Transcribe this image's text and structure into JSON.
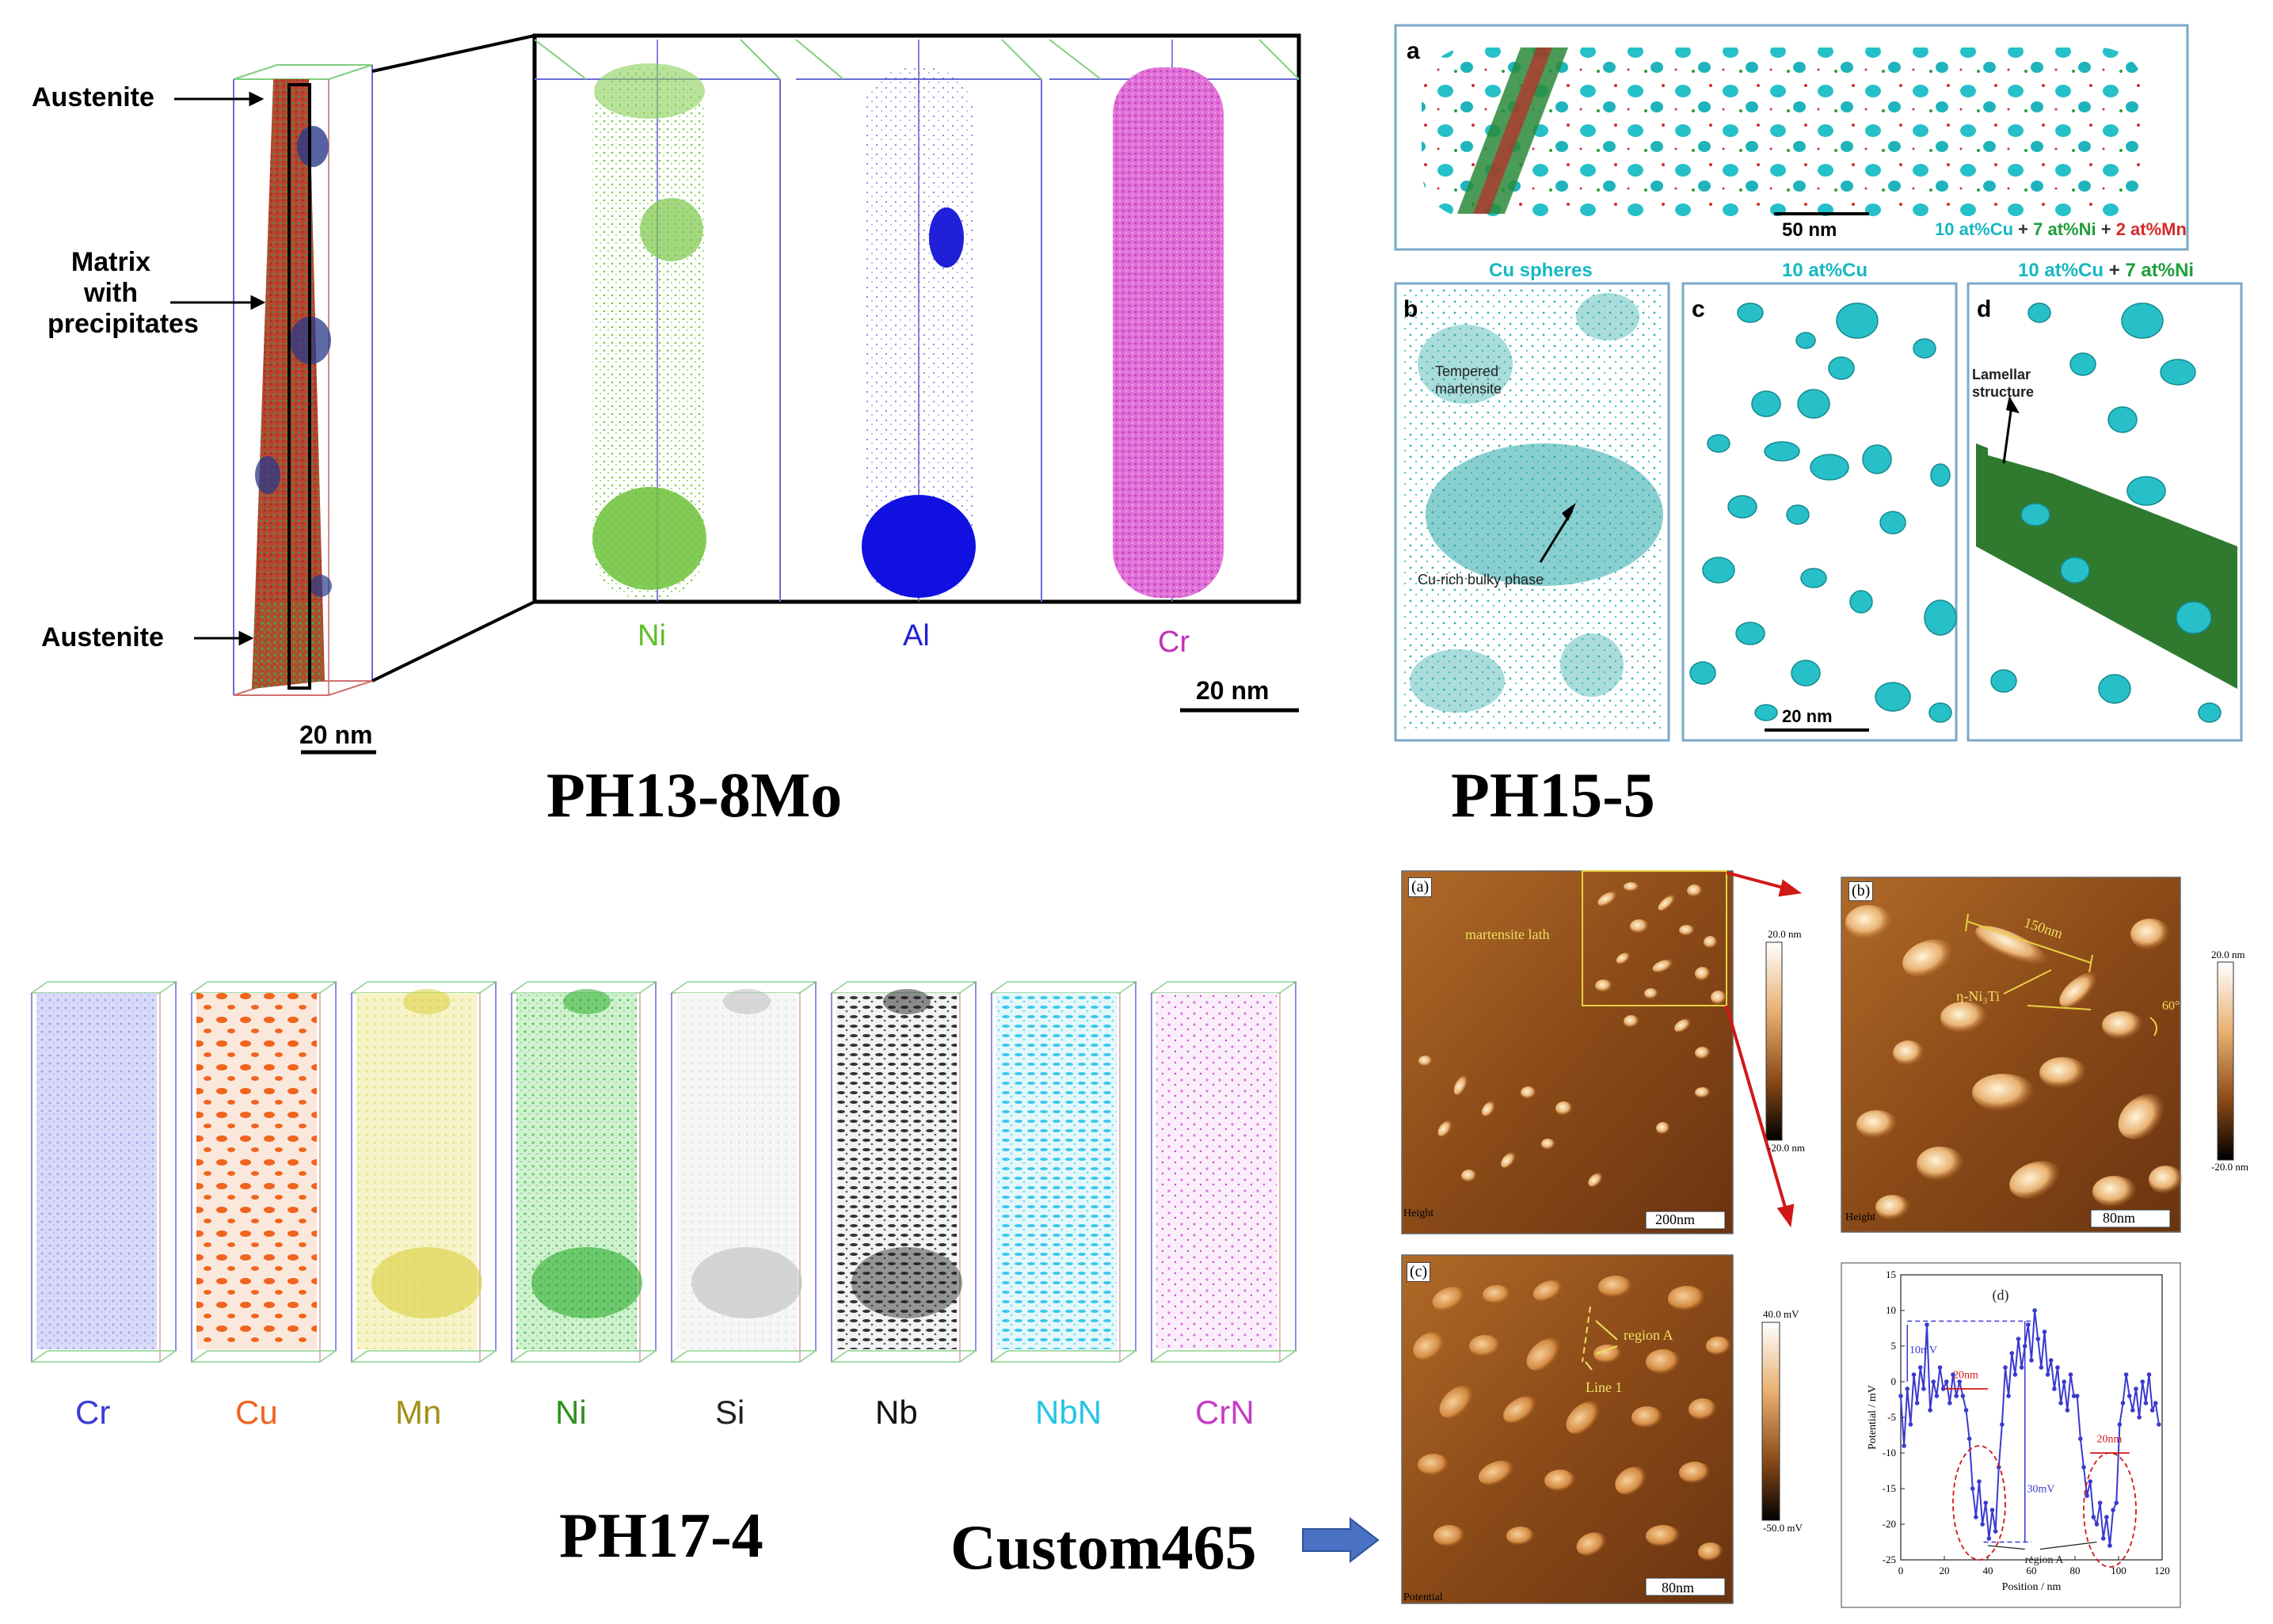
{
  "ph13": {
    "label": "PH13-8Mo",
    "austenite_top": "Austenite",
    "matrix_1": "Matrix",
    "matrix_2": "with",
    "matrix_3": "precipitates",
    "austenite_bottom": "Austenite",
    "scale_left": "20 nm",
    "scale_right": "20 nm",
    "elements": [
      "Ni",
      "Al",
      "Cr"
    ]
  },
  "ph15": {
    "label": "PH15-5",
    "panel_a": "a",
    "panel_a_scale": "50 nm",
    "legend": [
      {
        "text": "10 at%Cu",
        "color": "#16b8c4"
      },
      {
        "text": " + ",
        "color": "#333333"
      },
      {
        "text": "7 at%Ni",
        "color": "#1e9e3c"
      },
      {
        "text": " + ",
        "color": "#333333"
      },
      {
        "text": "2 at%Mn",
        "color": "#d42a2a"
      }
    ],
    "title_b": "Cu spheres",
    "title_c": "10 at%Cu",
    "title_d_1": "10 at%Cu",
    "title_d_2": " + ",
    "title_d_3": "7 at%Ni",
    "panel_b": "b",
    "panel_c": "c",
    "panel_d": "d",
    "tempered_1": "Tempered",
    "tempered_2": "martensite",
    "bulky": "Cu-rich bulky phase",
    "lamellar_1": "Lamellar",
    "lamellar_2": "structure",
    "scale_c": "20 nm"
  },
  "ph17": {
    "label": "PH17-4",
    "elements": [
      {
        "name": "Cr",
        "color": "#3b3bd6"
      },
      {
        "name": "Cu",
        "color": "#f0641e"
      },
      {
        "name": "Mn",
        "color": "#a09018"
      },
      {
        "name": "Ni",
        "color": "#2f8f1f"
      },
      {
        "name": "Si",
        "color": "#222222"
      },
      {
        "name": "Nb",
        "color": "#111111"
      },
      {
        "name": "NbN",
        "color": "#28c4e6"
      },
      {
        "name": "CrN",
        "color": "#c63cc6"
      }
    ]
  },
  "custom": {
    "label": "Custom465",
    "panel_a": "(a)",
    "martensite": "martensite lath",
    "height_a": "Height",
    "scale_a": "200nm",
    "cbar_a_top": "20.0 nm",
    "cbar_a_bot": "-20.0 nm",
    "panel_b": "(b)",
    "len_150": "150nm",
    "eta": "η-Ni₃Ti",
    "angle": "60°",
    "height_b": "Height",
    "scale_b": "80nm",
    "cbar_b_top": "20.0 nm",
    "cbar_b_bot": "-20.0 nm",
    "panel_c": "(c)",
    "region_a": "region A",
    "line1": "Line 1",
    "potential": "Potential",
    "scale_c": "80nm",
    "cbar_c_top": "40.0 mV",
    "cbar_c_bot": "-50.0 mV",
    "panel_d": "(d)",
    "ann_10mv": "10mV",
    "ann_20nm_1": "20nm",
    "ann_20nm_2": "20nm",
    "ann_30mv": "30mV",
    "ann_region": "region A"
  },
  "chart_data": {
    "type": "line",
    "title": "",
    "xlabel": "Position / nm",
    "ylabel": "Potential / mV",
    "xlim": [
      0,
      120
    ],
    "ylim": [
      -25,
      15
    ],
    "xticks": [
      0,
      20,
      40,
      60,
      80,
      100,
      120
    ],
    "yticks": [
      -25,
      -20,
      -15,
      -10,
      -5,
      0,
      5,
      10,
      15
    ],
    "series": [
      {
        "x": [
          0,
          1.5,
          3,
          4.5,
          6,
          7.5,
          9,
          10.5,
          12,
          13.5,
          15,
          16.5,
          18,
          19.5,
          21,
          22.5,
          24,
          25.5,
          27,
          28.5,
          30,
          31.5,
          33,
          34.5,
          36,
          37.5,
          39,
          40.5,
          42,
          43.5,
          45,
          46.5,
          48,
          49.5,
          51,
          52.5,
          54,
          55.5,
          57,
          58.5,
          60,
          61.5,
          63,
          64.5,
          66,
          67.5,
          69,
          70.5,
          72,
          73.5,
          75,
          76.5,
          78,
          79.5,
          81,
          82.5,
          84,
          85.5,
          87,
          88.5,
          90,
          91.5,
          93,
          94.5,
          96,
          97.5,
          99,
          100.5,
          102,
          103.5,
          105,
          106.5,
          108,
          109.5,
          111,
          112.5,
          114,
          115.5,
          117,
          118.5
        ],
        "values": [
          -2,
          -9,
          -1,
          -6,
          1,
          -3,
          2,
          -1,
          8,
          -4,
          0,
          -2,
          2,
          -1,
          0,
          -3,
          1,
          -2,
          0,
          -2,
          -4,
          -8,
          -15,
          -19,
          -14,
          -20,
          -17,
          -22,
          -18,
          -21,
          -12,
          -6,
          2,
          -2,
          4,
          1,
          6,
          2,
          5,
          8,
          3,
          10,
          6,
          2,
          7,
          1,
          3,
          -1,
          2,
          -3,
          0,
          -4,
          1,
          -2,
          -2,
          -8,
          -12,
          -16,
          -14,
          -19,
          -20,
          -17,
          -22,
          -19,
          -23,
          -18,
          -17,
          -6,
          -3,
          1,
          -2,
          -4,
          -1,
          -5,
          0,
          -3,
          1,
          -4,
          -3,
          -6
        ]
      }
    ]
  }
}
